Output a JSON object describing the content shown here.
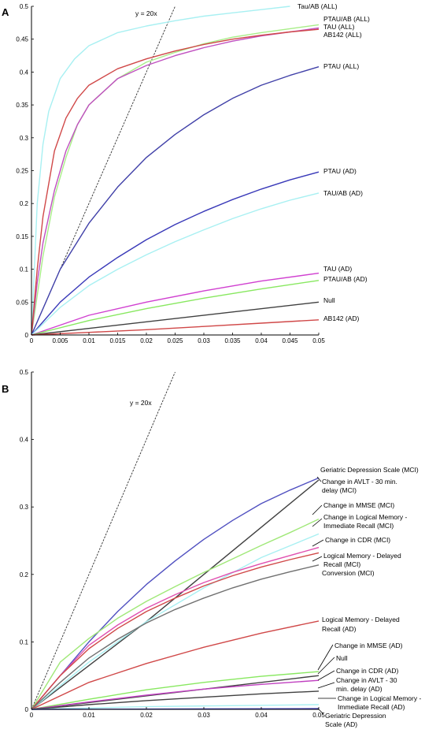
{
  "chart_data": [
    {
      "type": "line",
      "panel_label": "A",
      "title": "",
      "xlabel": "",
      "ylabel": "",
      "xlim": [
        0,
        0.05
      ],
      "ylim": [
        0,
        0.5
      ],
      "xticks": [
        "0",
        "0.005",
        "0.01",
        "0.015",
        "0.02",
        "0.025",
        "0.03",
        "0.035",
        "0.04",
        "0.045",
        "0.05"
      ],
      "yticks": [
        "0",
        "0.05",
        "0.1",
        "0.15",
        "0.2",
        "0.25",
        "0.3",
        "0.35",
        "0.4",
        "0.45",
        "0.5"
      ],
      "grid": false,
      "reference_line": {
        "label": "y = 20x",
        "slope": 20,
        "x_end": 0.025
      },
      "series": [
        {
          "name": "Tau/AB (ALL)",
          "color": "#a8f0f2",
          "x": [
            0,
            0.001,
            0.002,
            0.003,
            0.005,
            0.0075,
            0.01,
            0.015,
            0.02,
            0.025,
            0.03,
            0.035,
            0.04,
            0.045
          ],
          "y": [
            0,
            0.2,
            0.29,
            0.34,
            0.39,
            0.42,
            0.44,
            0.46,
            0.47,
            0.478,
            0.485,
            0.49,
            0.495,
            0.5
          ]
        },
        {
          "name": "PTAU/AB (ALL)",
          "color": "#a8ee88",
          "x": [
            0,
            0.001,
            0.002,
            0.004,
            0.006,
            0.008,
            0.01,
            0.015,
            0.02,
            0.025,
            0.03,
            0.035,
            0.04,
            0.045,
            0.05
          ],
          "y": [
            0,
            0.06,
            0.12,
            0.21,
            0.27,
            0.32,
            0.35,
            0.39,
            0.415,
            0.43,
            0.443,
            0.453,
            0.46,
            0.466,
            0.472
          ]
        },
        {
          "name": "TAU (ALL)",
          "color": "#c050c0",
          "x": [
            0,
            0.001,
            0.002,
            0.004,
            0.006,
            0.008,
            0.01,
            0.015,
            0.02,
            0.025,
            0.03,
            0.035,
            0.04,
            0.045,
            0.05
          ],
          "y": [
            0,
            0.08,
            0.14,
            0.22,
            0.28,
            0.32,
            0.35,
            0.39,
            0.41,
            0.425,
            0.437,
            0.447,
            0.455,
            0.461,
            0.467
          ]
        },
        {
          "name": "AB142 (ALL)",
          "color": "#d04848",
          "x": [
            0,
            0.001,
            0.002,
            0.004,
            0.006,
            0.008,
            0.01,
            0.015,
            0.02,
            0.025,
            0.03,
            0.035,
            0.04,
            0.045,
            0.05
          ],
          "y": [
            0,
            0.1,
            0.18,
            0.28,
            0.33,
            0.36,
            0.38,
            0.405,
            0.42,
            0.432,
            0.442,
            0.45,
            0.456,
            0.461,
            0.465
          ]
        },
        {
          "name": "PTAU (ALL)",
          "color": "#4040a8",
          "x": [
            0,
            0.005,
            0.01,
            0.015,
            0.02,
            0.025,
            0.03,
            0.035,
            0.04,
            0.045,
            0.05
          ],
          "y": [
            0,
            0.1,
            0.17,
            0.225,
            0.27,
            0.305,
            0.335,
            0.36,
            0.38,
            0.395,
            0.408
          ]
        },
        {
          "name": "PTAU (AD)",
          "color": "#3838b8",
          "x": [
            0,
            0.005,
            0.01,
            0.015,
            0.02,
            0.025,
            0.03,
            0.035,
            0.04,
            0.045,
            0.05
          ],
          "y": [
            0,
            0.05,
            0.088,
            0.118,
            0.145,
            0.168,
            0.188,
            0.206,
            0.222,
            0.236,
            0.248
          ]
        },
        {
          "name": "TAU/AB (AD)",
          "color": "#a8f0f2",
          "x": [
            0,
            0.005,
            0.01,
            0.015,
            0.02,
            0.025,
            0.03,
            0.035,
            0.04,
            0.045,
            0.05
          ],
          "y": [
            0,
            0.042,
            0.075,
            0.1,
            0.122,
            0.142,
            0.16,
            0.177,
            0.192,
            0.205,
            0.216
          ]
        },
        {
          "name": "TAU (AD)",
          "color": "#d040d0",
          "x": [
            0,
            0.01,
            0.02,
            0.03,
            0.04,
            0.05
          ],
          "y": [
            0,
            0.03,
            0.05,
            0.067,
            0.082,
            0.094
          ]
        },
        {
          "name": "PTAU/AB (AD)",
          "color": "#88e860",
          "x": [
            0,
            0.01,
            0.02,
            0.03,
            0.04,
            0.05
          ],
          "y": [
            0,
            0.022,
            0.04,
            0.056,
            0.07,
            0.083
          ]
        },
        {
          "name": "Null",
          "color": "#404040",
          "x": [
            0,
            0.05
          ],
          "y": [
            0,
            0.05
          ]
        },
        {
          "name": "AB142 (AD)",
          "color": "#d04848",
          "x": [
            0,
            0.01,
            0.02,
            0.03,
            0.04,
            0.05
          ],
          "y": [
            0,
            0.004,
            0.008,
            0.013,
            0.018,
            0.023
          ]
        }
      ]
    },
    {
      "type": "line",
      "panel_label": "B",
      "title": "",
      "xlabel": "",
      "ylabel": "",
      "xlim": [
        0,
        0.05
      ],
      "ylim": [
        0,
        0.5
      ],
      "xticks": [
        "0",
        "0.01",
        "0.02",
        "0.03",
        "0.04",
        "0.05"
      ],
      "yticks": [
        "0",
        "0.1",
        "0.2",
        "0.3",
        "0.4",
        "0.5"
      ],
      "grid": false,
      "reference_line": {
        "label": "y = 20x",
        "slope": 20,
        "x_end": 0.025
      },
      "series": [
        {
          "name": "Geriatric Depression Scale (MCI)",
          "color": "#5050c0",
          "x": [
            0,
            0.005,
            0.01,
            0.015,
            0.02,
            0.025,
            0.03,
            0.035,
            0.04,
            0.045,
            0.05
          ],
          "y": [
            0,
            0.05,
            0.1,
            0.145,
            0.185,
            0.22,
            0.252,
            0.28,
            0.305,
            0.325,
            0.343
          ]
        },
        {
          "name": "Change in AVLT - 30 min. delay (MCI)",
          "color": "#404040",
          "x": [
            0,
            0.01,
            0.02,
            0.03,
            0.04,
            0.05
          ],
          "y": [
            0,
            0.065,
            0.13,
            0.2,
            0.27,
            0.34
          ]
        },
        {
          "name": "Change in MMSE (MCI)",
          "color": "#a0e878",
          "x": [
            0,
            0.005,
            0.01,
            0.015,
            0.02,
            0.025,
            0.03,
            0.035,
            0.04,
            0.045,
            0.05
          ],
          "y": [
            0,
            0.07,
            0.105,
            0.135,
            0.16,
            0.182,
            0.203,
            0.223,
            0.243,
            0.262,
            0.282
          ]
        },
        {
          "name": "Change in Logical Memory - Immediate Recall  (MCI)",
          "color": "#a8f0f2",
          "x": [
            0,
            0.01,
            0.02,
            0.03,
            0.04,
            0.05
          ],
          "y": [
            0,
            0.07,
            0.13,
            0.18,
            0.225,
            0.26
          ]
        },
        {
          "name": "Change in CDR (MCI)",
          "color": "#e050b0",
          "x": [
            0,
            0.005,
            0.01,
            0.015,
            0.02,
            0.025,
            0.03,
            0.035,
            0.04,
            0.045,
            0.05
          ],
          "y": [
            0,
            0.05,
            0.095,
            0.125,
            0.15,
            0.17,
            0.188,
            0.203,
            0.216,
            0.228,
            0.24
          ]
        },
        {
          "name": "Logical Memory - Delayed Recall (MCI)",
          "color": "#d04848",
          "x": [
            0,
            0.005,
            0.01,
            0.015,
            0.02,
            0.025,
            0.03,
            0.035,
            0.04,
            0.045,
            0.05
          ],
          "y": [
            0,
            0.05,
            0.09,
            0.12,
            0.145,
            0.165,
            0.183,
            0.198,
            0.211,
            0.222,
            0.232
          ]
        },
        {
          "name": "Conversion (MCI)",
          "color": "#707070",
          "x": [
            0,
            0.005,
            0.01,
            0.015,
            0.02,
            0.025,
            0.03,
            0.035,
            0.04,
            0.045,
            0.05
          ],
          "y": [
            0,
            0.04,
            0.076,
            0.104,
            0.128,
            0.148,
            0.165,
            0.18,
            0.193,
            0.204,
            0.214
          ]
        },
        {
          "name": "Logical Memory - Delayed Recall (AD)",
          "color": "#d04848",
          "x": [
            0,
            0.01,
            0.02,
            0.03,
            0.04,
            0.05
          ],
          "y": [
            0,
            0.04,
            0.068,
            0.092,
            0.113,
            0.131
          ]
        },
        {
          "name": "Change in MMSE (AD)",
          "color": "#88e860",
          "x": [
            0,
            0.01,
            0.02,
            0.03,
            0.04,
            0.05
          ],
          "y": [
            0,
            0.015,
            0.029,
            0.04,
            0.049,
            0.056
          ]
        },
        {
          "name": "Null",
          "color": "#404040",
          "x": [
            0,
            0.05
          ],
          "y": [
            0,
            0.05
          ]
        },
        {
          "name": "Change in CDR (AD)",
          "color": "#c040c0",
          "x": [
            0,
            0.01,
            0.02,
            0.03,
            0.04,
            0.05
          ],
          "y": [
            0,
            0.011,
            0.021,
            0.03,
            0.037,
            0.043
          ]
        },
        {
          "name": "Change in AVLT - 30 min. delay (AD)",
          "color": "#404040",
          "x": [
            0,
            0.01,
            0.02,
            0.03,
            0.04,
            0.05
          ],
          "y": [
            0,
            0.007,
            0.013,
            0.018,
            0.023,
            0.027
          ]
        },
        {
          "name": "Change in Logical Memory - Immediate Recall  (AD)",
          "color": "#a8f0f2",
          "x": [
            0,
            0.01,
            0.02,
            0.03,
            0.04,
            0.05
          ],
          "y": [
            0,
            0.002,
            0.004,
            0.005,
            0.006,
            0.007
          ]
        },
        {
          "name": "Geriatric Depression Scale (AD)",
          "color": "#3838b8",
          "x": [
            0,
            0.05
          ],
          "y": [
            0,
            0.001
          ]
        }
      ]
    }
  ]
}
